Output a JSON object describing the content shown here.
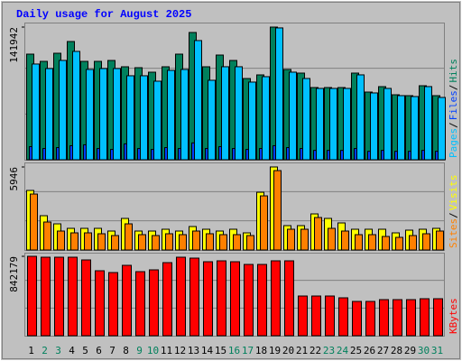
{
  "title": "Daily usage for August 2025",
  "title_color": "#0000ff",
  "categories": [
    "1",
    "2",
    "3",
    "4",
    "5",
    "6",
    "7",
    "8",
    "9",
    "10",
    "11",
    "12",
    "13",
    "14",
    "15",
    "16",
    "17",
    "18",
    "19",
    "20",
    "21",
    "22",
    "23",
    "24",
    "25",
    "26",
    "27",
    "28",
    "29",
    "30",
    "31"
  ],
  "label_colors": [
    "#000000",
    "#00805c",
    "#00805c",
    "#000000",
    "#000000",
    "#000000",
    "#000000",
    "#000000",
    "#00805c",
    "#00805c",
    "#000000",
    "#000000",
    "#000000",
    "#000000",
    "#000000",
    "#00805c",
    "#00805c",
    "#000000",
    "#000000",
    "#000000",
    "#000000",
    "#000000",
    "#00805c",
    "#00805c",
    "#000000",
    "#000000",
    "#000000",
    "#000000",
    "#000000",
    "#00805c",
    "#00805c"
  ],
  "chart_data": [
    {
      "type": "bar",
      "ylim": [
        0,
        141942
      ],
      "yticks": [
        141942
      ],
      "separator": "/",
      "series": [
        {
          "name": "Hits",
          "color": "#00805c",
          "values": [
            112980,
            105250,
            113940,
            126490,
            105250,
            105250,
            106220,
            99460,
            98490,
            93660,
            99460,
            112980,
            136150,
            99460,
            112010,
            106220,
            86900,
            90770,
            141942,
            96560,
            92700,
            77250,
            77250,
            77250,
            92700,
            72420,
            78210,
            69520,
            68560,
            79180,
            68560
          ]
        },
        {
          "name": "Files",
          "color": "#0040ff",
          "values": [
            14000,
            12000,
            13000,
            15000,
            16000,
            12000,
            11000,
            17000,
            12000,
            11000,
            13000,
            12000,
            18000,
            12000,
            14000,
            12000,
            11000,
            12000,
            15000,
            13000,
            12000,
            10000,
            10000,
            10000,
            12000,
            9000,
            10000,
            9000,
            9000,
            10000,
            9000
          ]
        },
        {
          "name": "Pages",
          "color": "#00c0ff",
          "values": [
            102400,
            97570,
            106260,
            115920,
            96600,
            97570,
            97570,
            89840,
            89840,
            84040,
            95630,
            96600,
            127510,
            85010,
            99500,
            99500,
            83080,
            88870,
            141040,
            93700,
            86940,
            76310,
            76310,
            76310,
            90800,
            71480,
            76310,
            68590,
            67620,
            78250,
            66650
          ]
        }
      ]
    },
    {
      "type": "bar",
      "ylim": [
        0,
        5946
      ],
      "yticks": [
        5946
      ],
      "separator": "/",
      "series": [
        {
          "name": "Visits",
          "color": "#ffff00",
          "values": [
            4264,
            2455,
            1873,
            1550,
            1550,
            1550,
            1357,
            2261,
            1357,
            1357,
            1486,
            1357,
            1680,
            1486,
            1357,
            1486,
            1227,
            4134,
            5946,
            1744,
            1744,
            2584,
            2261,
            1938,
            1486,
            1486,
            1486,
            1227,
            1421,
            1486,
            1550
          ]
        },
        {
          "name": "Sites",
          "color": "#ff8000",
          "values": [
            4005,
            2003,
            1357,
            1227,
            1227,
            1163,
            1034,
            1873,
            1098,
            1034,
            1163,
            1098,
            1357,
            1163,
            1098,
            1098,
            1034,
            3876,
            5685,
            1486,
            1486,
            2326,
            1550,
            1357,
            1098,
            1098,
            969,
            904,
            1034,
            1163,
            1357
          ]
        }
      ]
    },
    {
      "type": "bar",
      "ylim": [
        0,
        842179
      ],
      "yticks": [
        842179
      ],
      "separator": "/",
      "series": [
        {
          "name": "KBytes",
          "color": "#ff0000",
          "values": [
            842179,
            832600,
            832600,
            832600,
            803900,
            689000,
            669900,
            746500,
            679500,
            698600,
            775200,
            832600,
            823000,
            784700,
            794300,
            784700,
            756000,
            756000,
            794300,
            794300,
            421100,
            421100,
            421100,
            401900,
            363700,
            363700,
            382800,
            382800,
            382800,
            392400,
            392400
          ]
        }
      ]
    }
  ]
}
